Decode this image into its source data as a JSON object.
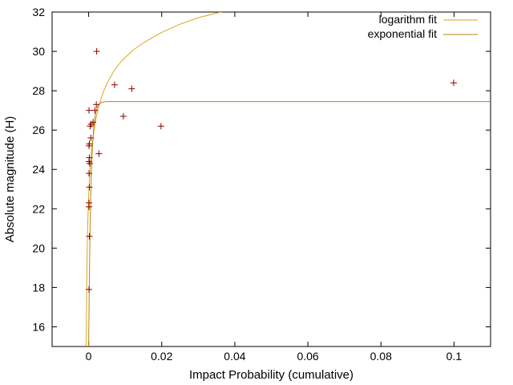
{
  "chart_data": {
    "type": "scatter",
    "title": "",
    "xlabel": "Impact Probability (cumulative)",
    "ylabel": "Absolute magnitude (H)",
    "xlim": [
      -0.01,
      0.11
    ],
    "ylim": [
      15,
      32
    ],
    "xticks": [
      0,
      0.02,
      0.04,
      0.06,
      0.08,
      0.1
    ],
    "xtick_labels": [
      "0",
      "0.02",
      "0.04",
      "0.06",
      "0.08",
      "0.1"
    ],
    "yticks": [
      16,
      18,
      20,
      22,
      24,
      26,
      28,
      30,
      32
    ],
    "ytick_labels": [
      "16",
      "18",
      "20",
      "22",
      "24",
      "26",
      "28",
      "30",
      "32"
    ],
    "grid": false,
    "legend_position": "top-right",
    "points": {
      "color": "#8b0000",
      "x": [
        0.0001,
        0.0002,
        0.0001,
        0.0001,
        0.0002,
        0.0001,
        0.0003,
        0.0001,
        0.0002,
        0.0001,
        0.0006,
        0.0004,
        0.0007,
        0.0012,
        0.0017,
        0.0021,
        0.0022,
        0.0028,
        0.0071,
        0.0095,
        0.0118,
        0.0198,
        0.0999,
        0.0001,
        0.0002
      ],
      "y": [
        17.9,
        20.6,
        22.1,
        22.3,
        23.1,
        23.8,
        24.3,
        24.4,
        24.6,
        25.2,
        25.6,
        26.2,
        26.3,
        26.4,
        27.0,
        27.3,
        30.0,
        24.8,
        28.3,
        26.7,
        28.1,
        26.2,
        28.4,
        27.0,
        25.3
      ]
    },
    "series": [
      {
        "name": "logarithm fit",
        "color": "#daa520",
        "x": [
          -0.00065,
          -0.0006,
          -0.0005,
          -0.0004,
          -0.0003,
          -0.0002,
          -0.0001,
          0.0,
          0.0001,
          0.0002,
          0.0004,
          0.0006,
          0.0008,
          0.001,
          0.0013,
          0.0016,
          0.002,
          0.0025,
          0.003,
          0.004,
          0.005,
          0.007,
          0.009,
          0.012,
          0.015,
          0.02,
          0.025,
          0.03,
          0.04,
          0.05,
          0.06,
          0.07,
          0.08,
          0.09,
          0.1,
          0.11
        ],
        "y": [
          15.0,
          16.47,
          18.61,
          19.88,
          20.79,
          21.5,
          22.08,
          22.57,
          22.99,
          23.36,
          23.99,
          24.5,
          24.93,
          25.3,
          25.77,
          26.15,
          26.57,
          27.01,
          27.37,
          27.93,
          28.36,
          29.03,
          29.51,
          30.04,
          30.44,
          30.97,
          31.38,
          31.71,
          32.18,
          32.47,
          32.47,
          32.47,
          32.47,
          32.47,
          32.47,
          32.47
        ]
      },
      {
        "name": "exponential fit",
        "color": "#b8860b",
        "x": [
          0.0,
          0.0002,
          0.0004,
          0.0006,
          0.0008,
          0.001,
          0.0012,
          0.0015,
          0.0018,
          0.0022,
          0.0026,
          0.003,
          0.0035,
          0.004,
          0.005,
          0.006,
          0.008,
          0.01,
          0.02,
          0.04,
          0.06,
          0.08,
          0.1,
          0.11
        ],
        "y": [
          15.0,
          18.55,
          21.04,
          22.82,
          24.09,
          25.0,
          25.65,
          26.3,
          26.73,
          27.07,
          27.25,
          27.34,
          27.4,
          27.43,
          27.45,
          27.45,
          27.45,
          27.45,
          27.45,
          27.45,
          27.45,
          27.45,
          27.45,
          27.45
        ]
      }
    ]
  }
}
